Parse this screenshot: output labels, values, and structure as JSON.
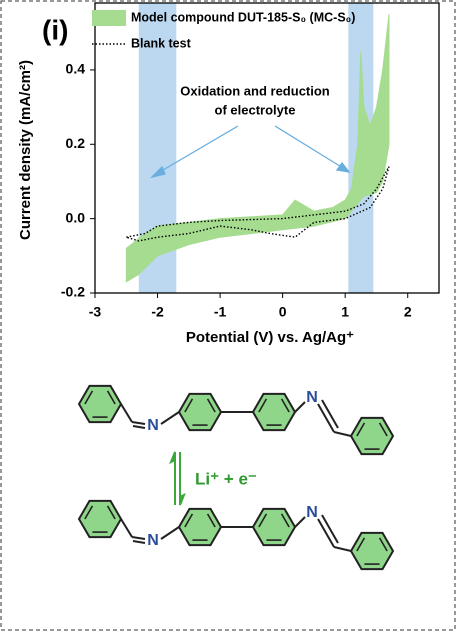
{
  "chart_data": {
    "type": "cv",
    "panel_label": "(i)",
    "xlabel": "Potential (V) vs. Ag/Ag⁺",
    "ylabel": "Current density (mA/cm²)",
    "annotation": [
      "Oxidation and reduction",
      "of electrolyte"
    ],
    "xlim": [
      -3,
      2.5
    ],
    "ylim": [
      -0.2,
      0.58
    ],
    "xticks": [
      -3,
      -2,
      -1,
      0,
      1,
      2
    ],
    "yticks": [
      -0.2,
      {
        "value": 0,
        "label": "0.0"
      },
      0.2,
      0.4
    ],
    "bands": [
      [
        -2.3,
        -1.7
      ],
      [
        1.05,
        1.45
      ]
    ],
    "band_color": "#bcd8f0",
    "series": [
      {
        "name": "Model compound DUT-185-S₀ (MC-S₀)",
        "color": "#a6dc8f",
        "style": "area",
        "x": [
          -2.5,
          -2.2,
          -2.0,
          -1.5,
          -1.0,
          -0.5,
          0.0,
          0.2,
          0.3,
          0.5,
          0.8,
          1.0,
          1.1,
          1.2,
          1.25,
          1.3,
          1.4,
          1.5,
          1.6,
          1.7,
          1.7,
          1.6,
          1.5,
          1.3,
          1.1,
          1.0,
          0.5,
          0.0,
          -0.5,
          -1.0,
          -1.5,
          -2.0,
          -2.3,
          -2.5
        ],
        "values": [
          -0.08,
          -0.04,
          -0.02,
          -0.01,
          0.0,
          0.005,
          0.01,
          0.05,
          0.04,
          0.02,
          0.03,
          0.05,
          0.08,
          0.2,
          0.45,
          0.3,
          0.25,
          0.3,
          0.4,
          0.55,
          0.2,
          0.1,
          0.07,
          0.06,
          0.02,
          0.0,
          -0.02,
          -0.03,
          -0.04,
          -0.05,
          -0.07,
          -0.1,
          -0.15,
          -0.17
        ]
      },
      {
        "name": "Blank test",
        "color": "#000000",
        "style": "dotted",
        "x": [
          -2.5,
          -2.2,
          -2.0,
          -1.5,
          -1.0,
          0.0,
          0.5,
          1.0,
          1.3,
          1.5,
          1.7,
          1.6,
          1.4,
          1.0,
          0.5,
          0.2,
          -0.2,
          -0.5,
          -1.0,
          -1.5,
          -2.0,
          -2.3,
          -2.5
        ],
        "values": [
          -0.05,
          -0.04,
          -0.02,
          -0.01,
          -0.005,
          0.0,
          0.01,
          0.02,
          0.04,
          0.08,
          0.14,
          0.08,
          0.03,
          0.0,
          -0.01,
          -0.05,
          -0.04,
          -0.03,
          -0.02,
          -0.04,
          -0.05,
          -0.06,
          -0.05
        ]
      }
    ]
  },
  "diagram": {
    "atom_labels": [
      "N",
      "N",
      "N",
      "N"
    ],
    "reaction": "Li⁺ + e⁻"
  }
}
